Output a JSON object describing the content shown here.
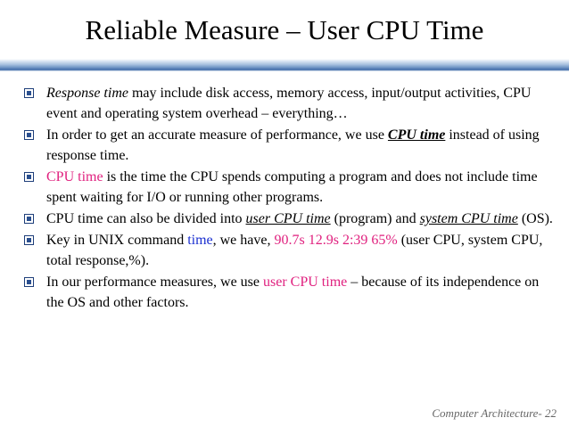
{
  "slide": {
    "title": "Reliable Measure – User CPU Time",
    "footer": "Computer Architecture- 22",
    "colors": {
      "accent": "#e0217f",
      "blue": "#1a2fd0",
      "rule": "#3f6aa8"
    }
  },
  "bullets": {
    "b1": {
      "t1": "Response time",
      "t2": " may include disk access, memory access, input/output activities, CPU event and operating system overhead – everything…"
    },
    "b2": {
      "t1": "In order to get an accurate measure of performance, we use ",
      "t2": "CPU time",
      "t3": " instead of using response time."
    },
    "b3": {
      "t1": "CPU time",
      "t2": " is the time the CPU spends computing a program and does not include time spent waiting for I/O or running other programs."
    },
    "b4": {
      "t1": "CPU time can also be divided into ",
      "t2": "user CPU time",
      "t3": " (program) and ",
      "t4": "system CPU time",
      "t5": " (OS)."
    },
    "b5": {
      "t1": "Key in UNIX command ",
      "t2": "time",
      "t3": ", we have, ",
      "t4": "90.7s 12.9s 2:39 65%",
      "t5": "  (user CPU, system CPU, total response,%)."
    },
    "b6": {
      "t1": "In our performance measures, we use ",
      "t2": "user CPU time",
      "t3": " – because of its independence on the OS and other factors."
    }
  }
}
